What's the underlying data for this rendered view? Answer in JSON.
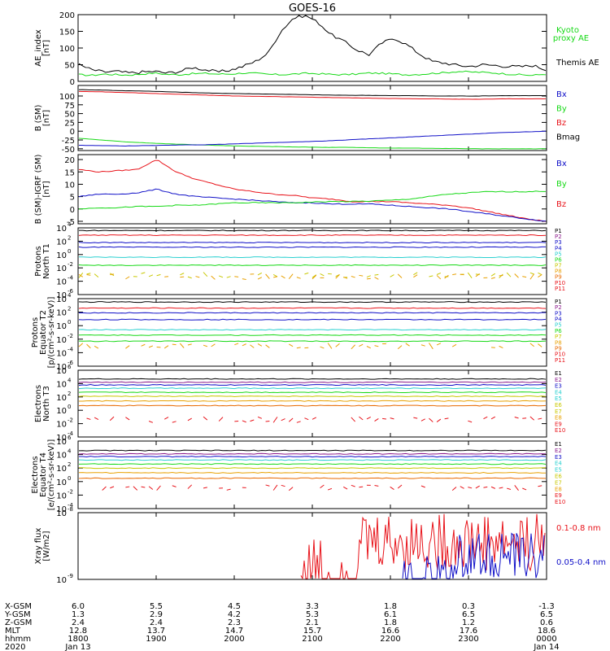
{
  "title": "GOES-16",
  "colors": {
    "black": "#000000",
    "red": "#e8131a",
    "green": "#16d916",
    "blue": "#1010c8",
    "frame": "#000000"
  },
  "chart_data": [
    {
      "type": "line",
      "id": "ae",
      "ylabel": [
        "AE_index",
        "[nT]"
      ],
      "ylim": [
        0,
        200
      ],
      "ticks": [
        "0",
        "50",
        "100",
        "150",
        "200"
      ],
      "series": [
        {
          "name": "Kyoto proxy AE",
          "color": "#16d916",
          "values": [
            20,
            18,
            22,
            20,
            19,
            22,
            25,
            21,
            20,
            23,
            24,
            22,
            22,
            25,
            24,
            21,
            20,
            22,
            24,
            23,
            21,
            20,
            22,
            25,
            24,
            22,
            20,
            21,
            24,
            26,
            30,
            28,
            27,
            25,
            22,
            20,
            18,
            22
          ]
        },
        {
          "name": "Themis AE",
          "color": "#000000",
          "values": [
            50,
            35,
            28,
            30,
            25,
            28,
            30,
            25,
            30,
            42,
            35,
            28,
            34,
            45,
            60,
            85,
            150,
            190,
            198,
            175,
            140,
            120,
            95,
            80,
            115,
            130,
            110,
            82,
            60,
            55,
            48,
            45,
            50,
            48,
            45,
            44,
            48,
            35
          ]
        }
      ],
      "legend": [
        {
          "label": "Kyoto",
          "color": "#16d916"
        },
        {
          "label": "proxy AE",
          "color": "#16d916"
        },
        {
          "label": "Themis AE",
          "color": "#000000"
        }
      ]
    },
    {
      "type": "line",
      "id": "bsm",
      "ylabel": [
        "B (SM)",
        "[nT]"
      ],
      "ylim": [
        -55,
        130
      ],
      "ticks": [
        "-50",
        "-25",
        "0",
        "25",
        "50",
        "75",
        "100"
      ],
      "series": [
        {
          "name": "Bmag",
          "color": "#000000",
          "values": [
            118,
            117,
            115,
            114,
            112,
            110,
            108,
            107,
            106,
            105,
            104,
            103,
            102,
            102,
            101,
            101,
            100,
            100,
            100,
            101,
            101,
            101
          ]
        },
        {
          "name": "Bz",
          "color": "#e8131a",
          "values": [
            113,
            112,
            110,
            108,
            106,
            104,
            102,
            100,
            99,
            98,
            97,
            96,
            95,
            94,
            93,
            92,
            92,
            91,
            91,
            92,
            92,
            92
          ]
        },
        {
          "name": "By",
          "color": "#16d916",
          "values": [
            -20,
            -25,
            -30,
            -33,
            -36,
            -38,
            -40,
            -42,
            -43,
            -44,
            -45,
            -46,
            -46,
            -47,
            -48,
            -48,
            -49,
            -49,
            -50,
            -50,
            -50,
            -50
          ]
        },
        {
          "name": "Bx",
          "color": "#1010c8",
          "values": [
            -40,
            -41,
            -42,
            -41,
            -40,
            -39,
            -38,
            -36,
            -34,
            -32,
            -30,
            -28,
            -25,
            -22,
            -19,
            -16,
            -13,
            -10,
            -7,
            -4,
            -2,
            0
          ]
        }
      ],
      "legend": [
        {
          "label": "Bx",
          "color": "#1010c8"
        },
        {
          "label": "By",
          "color": "#16d916"
        },
        {
          "label": "Bz",
          "color": "#e8131a"
        },
        {
          "label": "Bmag",
          "color": "#000000"
        }
      ]
    },
    {
      "type": "line",
      "id": "bigrf",
      "ylabel": [
        "B (SM)-IGRF (SM)",
        "[nT]"
      ],
      "ylim": [
        -6,
        22
      ],
      "ticks": [
        "-5",
        "0",
        "5",
        "10",
        "15",
        "20"
      ],
      "series": [
        {
          "name": "Bz",
          "color": "#e8131a",
          "values": [
            16,
            15,
            15.5,
            16,
            20,
            15,
            12,
            10,
            8,
            7,
            6,
            5.5,
            4.5,
            4,
            3,
            3,
            3,
            2.5,
            2,
            1.5,
            0.5,
            -1,
            -2.5,
            -4,
            -5
          ]
        },
        {
          "name": "Bx",
          "color": "#1010c8",
          "values": [
            5,
            6,
            6,
            6.5,
            8,
            6,
            5,
            4.5,
            4,
            3.5,
            3,
            2.5,
            2.5,
            2,
            2,
            2,
            1.5,
            1,
            0.5,
            0,
            -1,
            -2,
            -3,
            -4,
            -5
          ]
        },
        {
          "name": "By",
          "color": "#16d916",
          "values": [
            0,
            0.5,
            0.5,
            1,
            1,
            1.5,
            1.5,
            2,
            2.5,
            2.5,
            2.5,
            2.5,
            2.8,
            3,
            3,
            3.2,
            3.5,
            4,
            5,
            6,
            6.5,
            7,
            7,
            7,
            7.2
          ]
        }
      ],
      "legend": [
        {
          "label": "Bx",
          "color": "#1010c8"
        },
        {
          "label": "By",
          "color": "#16d916"
        },
        {
          "label": "Bz",
          "color": "#e8131a"
        }
      ]
    },
    {
      "type": "line",
      "id": "pnorth",
      "log": true,
      "ylabel": [
        "Protons",
        "North T1"
      ],
      "ylim": [
        -6,
        4
      ],
      "ticks": [
        {
          "m": "10",
          "e": "4",
          "v": 4
        },
        {
          "m": "10",
          "e": "2",
          "v": 2
        },
        {
          "m": "10",
          "e": "0",
          "v": 0
        },
        {
          "m": "10",
          "e": "-2",
          "v": -2
        },
        {
          "m": "10",
          "e": "-4",
          "v": -4
        },
        {
          "m": "10",
          "e": "-6",
          "v": -6
        }
      ],
      "series": [
        {
          "name": "P1",
          "color": "#000000",
          "level": 3.6
        },
        {
          "name": "P2",
          "color": "#e8131a",
          "level": 2.9
        },
        {
          "name": "P3",
          "color": "#1010c8",
          "level": 1.8
        },
        {
          "name": "P4",
          "color": "#1010c8",
          "level": 1.1
        },
        {
          "name": "P5",
          "color": "#2ad0d0",
          "level": -0.4
        },
        {
          "name": "P6",
          "color": "#16d916",
          "level": -1.6
        },
        {
          "name": "P7",
          "color": "#c8c800",
          "level": -3.1
        },
        {
          "name": "P8",
          "color": "#e8a000",
          "level": -3.3
        }
      ],
      "legend": [
        {
          "label": "P1",
          "color": "#000000"
        },
        {
          "label": "P2",
          "color": "#8b1a8b"
        },
        {
          "label": "P3",
          "color": "#1010c8"
        },
        {
          "label": "P4",
          "color": "#1010c8"
        },
        {
          "label": "P5",
          "color": "#2ad0d0"
        },
        {
          "label": "P6",
          "color": "#16d916"
        },
        {
          "label": "P7",
          "color": "#c8c800"
        },
        {
          "label": "P8",
          "color": "#e8a000"
        },
        {
          "label": "P9",
          "color": "#e86a00"
        },
        {
          "label": "P10",
          "color": "#e8131a"
        },
        {
          "label": "P11",
          "color": "#e8131a"
        }
      ]
    },
    {
      "type": "line",
      "id": "peq",
      "log": true,
      "ylabel": [
        "Protons",
        "Equator T2",
        "[p/(cm²-s-sr-keV)]"
      ],
      "ylim": [
        -6,
        4
      ],
      "ticks": [
        {
          "m": "10",
          "e": "4",
          "v": 4
        },
        {
          "m": "10",
          "e": "2",
          "v": 2
        },
        {
          "m": "10",
          "e": "0",
          "v": 0
        },
        {
          "m": "10",
          "e": "-2",
          "v": -2
        },
        {
          "m": "10",
          "e": "-4",
          "v": -4
        },
        {
          "m": "10",
          "e": "-6",
          "v": -6
        }
      ],
      "series": [
        {
          "name": "P1",
          "color": "#000000",
          "level": 3.5
        },
        {
          "name": "P2",
          "color": "#e8131a",
          "level": 2.6
        },
        {
          "name": "P3",
          "color": "#1010c8",
          "level": 1.9
        },
        {
          "name": "P4",
          "color": "#1010c8",
          "level": 0.9
        },
        {
          "name": "P5",
          "color": "#2ad0d0",
          "level": -0.6
        },
        {
          "name": "P6",
          "color": "#16d916",
          "level": -1.4
        },
        {
          "name": "P7",
          "color": "#16d916",
          "level": -2.3
        },
        {
          "name": "P8",
          "color": "#e8a000",
          "level": -3.0
        }
      ],
      "legend": [
        {
          "label": "P1",
          "color": "#000000"
        },
        {
          "label": "P2",
          "color": "#8b1a8b"
        },
        {
          "label": "P3",
          "color": "#1010c8"
        },
        {
          "label": "P4",
          "color": "#1010c8"
        },
        {
          "label": "P5",
          "color": "#2ad0d0"
        },
        {
          "label": "P6",
          "color": "#16d916"
        },
        {
          "label": "P7",
          "color": "#c8c800"
        },
        {
          "label": "P8",
          "color": "#e8a000"
        },
        {
          "label": "P9",
          "color": "#e86a00"
        },
        {
          "label": "P10",
          "color": "#e8131a"
        },
        {
          "label": "P11",
          "color": "#e8131a"
        }
      ]
    },
    {
      "type": "line",
      "id": "enorth",
      "log": true,
      "ylabel": [
        "Electrons",
        "North T3"
      ],
      "ylim": [
        -4,
        6
      ],
      "ticks": [
        {
          "m": "10",
          "e": "6",
          "v": 6
        },
        {
          "m": "10",
          "e": "4",
          "v": 4
        },
        {
          "m": "10",
          "e": "2",
          "v": 2
        },
        {
          "m": "10",
          "e": "0",
          "v": 0
        },
        {
          "m": "10",
          "e": "-2",
          "v": -2
        },
        {
          "m": "10",
          "e": "-4",
          "v": -4
        }
      ],
      "series": [
        {
          "name": "E1",
          "color": "#000000",
          "level": 4.7
        },
        {
          "name": "E2",
          "color": "#8b1a8b",
          "level": 4.2
        },
        {
          "name": "E3",
          "color": "#1010c8",
          "level": 3.8
        },
        {
          "name": "E4",
          "color": "#2ad0d0",
          "level": 3.3
        },
        {
          "name": "E5",
          "color": "#16d916",
          "level": 2.7
        },
        {
          "name": "E6",
          "color": "#c8c800",
          "level": 2.1
        },
        {
          "name": "E7",
          "color": "#e8a000",
          "level": 1.4
        },
        {
          "name": "E8",
          "color": "#e86a00",
          "level": 0.7
        },
        {
          "name": "E9",
          "color": "#e8131a",
          "level": -1.4
        }
      ],
      "legend": [
        {
          "label": "E1",
          "color": "#000000"
        },
        {
          "label": "E2",
          "color": "#8b1a8b"
        },
        {
          "label": "E3",
          "color": "#1010c8"
        },
        {
          "label": "E4",
          "color": "#2ad0d0"
        },
        {
          "label": "E5",
          "color": "#2ad0d0"
        },
        {
          "label": "E6",
          "color": "#c8c800"
        },
        {
          "label": "E7",
          "color": "#c8c800"
        },
        {
          "label": "E8",
          "color": "#e8a000"
        },
        {
          "label": "E9",
          "color": "#e8131a"
        },
        {
          "label": "E10",
          "color": "#e8131a"
        }
      ]
    },
    {
      "type": "line",
      "id": "eeq",
      "log": true,
      "ylabel": [
        "Electrons",
        "Equator T4",
        "[e/(cm²-s-sr-keV)]"
      ],
      "ylim": [
        -4,
        6
      ],
      "ticks": [
        {
          "m": "10",
          "e": "6",
          "v": 6
        },
        {
          "m": "10",
          "e": "4",
          "v": 4
        },
        {
          "m": "10",
          "e": "2",
          "v": 2
        },
        {
          "m": "10",
          "e": "0",
          "v": 0
        },
        {
          "m": "10",
          "e": "-2",
          "v": -2
        },
        {
          "m": "10",
          "e": "-4",
          "v": -4
        }
      ],
      "series": [
        {
          "name": "E1",
          "color": "#000000",
          "level": 4.6
        },
        {
          "name": "E2",
          "color": "#8b1a8b",
          "level": 4.1
        },
        {
          "name": "E3",
          "color": "#1010c8",
          "level": 3.7
        },
        {
          "name": "E4",
          "color": "#2ad0d0",
          "level": 3.2
        },
        {
          "name": "E5",
          "color": "#16d916",
          "level": 2.6
        },
        {
          "name": "E6",
          "color": "#c8c800",
          "level": 2.0
        },
        {
          "name": "E7",
          "color": "#e8a000",
          "level": 1.3
        },
        {
          "name": "E8",
          "color": "#e86a00",
          "level": 0.5
        },
        {
          "name": "E9",
          "color": "#e8131a",
          "level": -0.9
        }
      ],
      "legend": [
        {
          "label": "E1",
          "color": "#000000"
        },
        {
          "label": "E2",
          "color": "#8b1a8b"
        },
        {
          "label": "E3",
          "color": "#1010c8"
        },
        {
          "label": "E4",
          "color": "#2ad0d0"
        },
        {
          "label": "E5",
          "color": "#2ad0d0"
        },
        {
          "label": "E6",
          "color": "#c8c800"
        },
        {
          "label": "E7",
          "color": "#c8c800"
        },
        {
          "label": "E8",
          "color": "#e8a000"
        },
        {
          "label": "E9",
          "color": "#e8131a"
        },
        {
          "label": "E10",
          "color": "#e8131a"
        }
      ]
    },
    {
      "type": "line",
      "id": "xray",
      "log": true,
      "ylabel": [
        "Xray flux",
        "[W/m2]"
      ],
      "ylim": [
        -9,
        -8
      ],
      "ticks": [
        {
          "m": "10",
          "e": "-8",
          "v": -8
        },
        {
          "m": "10",
          "e": "-9",
          "v": -9
        }
      ],
      "series": [
        {
          "name": "0.1-0.8 nm",
          "color": "#e8131a"
        },
        {
          "name": "0.05-0.4 nm",
          "color": "#1010c8"
        }
      ],
      "legend": [
        {
          "label": "0.1-0.8 nm",
          "color": "#e8131a"
        },
        {
          "label": "0.05-0.4 nm",
          "color": "#1010c8"
        }
      ]
    }
  ],
  "ephemeris": {
    "labels": [
      "X-GSM",
      "Y-GSM",
      "Z-GSM",
      "MLT",
      "hhmm",
      "2020"
    ],
    "columns": [
      [
        "6.0",
        "1.3",
        "2.4",
        "12.8",
        "1800",
        "Jan 13"
      ],
      [
        "5.5",
        "2.9",
        "2.4",
        "13.7",
        "1900",
        ""
      ],
      [
        "4.5",
        "4.2",
        "2.3",
        "14.7",
        "2000",
        ""
      ],
      [
        "3.3",
        "5.3",
        "2.1",
        "15.7",
        "2100",
        ""
      ],
      [
        "1.8",
        "6.1",
        "1.8",
        "16.6",
        "2200",
        ""
      ],
      [
        "0.3",
        "6.5",
        "1.2",
        "17.6",
        "2300",
        ""
      ],
      [
        "-1.3",
        "6.5",
        "0.6",
        "18.6",
        "0000",
        "Jan 14"
      ]
    ]
  }
}
